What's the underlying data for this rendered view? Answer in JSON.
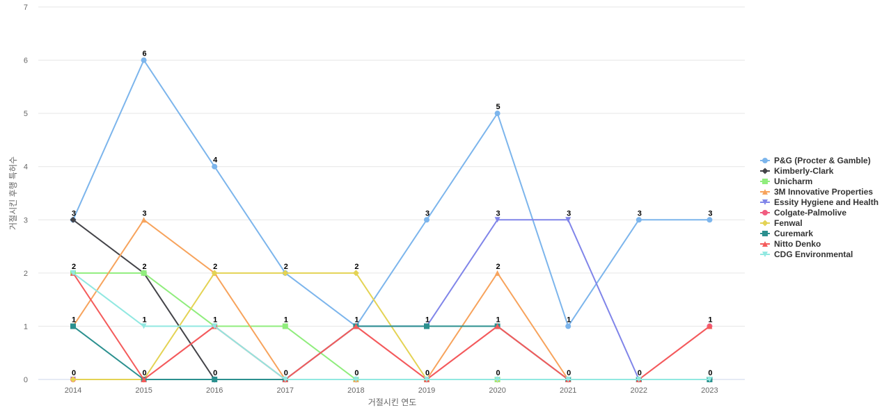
{
  "chart_data": {
    "type": "line",
    "title": "",
    "xlabel": "거절시킨 연도",
    "ylabel": "거절시킨 후행 특허수",
    "categories": [
      "2014",
      "2015",
      "2016",
      "2017",
      "2018",
      "2019",
      "2020",
      "2021",
      "2022",
      "2023"
    ],
    "ylim": [
      0,
      7
    ],
    "yticks": [
      0,
      1,
      2,
      3,
      4,
      5,
      6,
      7
    ],
    "grid": true,
    "legend_position": "right",
    "data_labels": [
      {
        "x": "2014",
        "values": [
          "3",
          "2",
          "1",
          "0"
        ]
      },
      {
        "x": "2015",
        "values": [
          "6",
          "3",
          "2",
          "1",
          "0"
        ]
      },
      {
        "x": "2016",
        "values": [
          "4",
          "2",
          "1",
          "0"
        ]
      },
      {
        "x": "2017",
        "values": [
          "2",
          "1",
          "0"
        ]
      },
      {
        "x": "2018",
        "values": [
          "2",
          "1",
          "0"
        ]
      },
      {
        "x": "2019",
        "values": [
          "3",
          "1",
          "0"
        ]
      },
      {
        "x": "2020",
        "values": [
          "5",
          "3",
          "2",
          "1",
          "0"
        ]
      },
      {
        "x": "2021",
        "values": [
          "3",
          "1",
          "0"
        ]
      },
      {
        "x": "2022",
        "values": [
          "3",
          "0"
        ]
      },
      {
        "x": "2023",
        "values": [
          "3",
          "1",
          "0"
        ]
      }
    ],
    "series": [
      {
        "name": "P&G (Procter & Gamble)",
        "color": "#7cb5ec",
        "marker": "circle",
        "values": [
          3,
          6,
          4,
          2,
          1,
          3,
          5,
          1,
          3,
          3
        ]
      },
      {
        "name": "Kimberly-Clark",
        "color": "#434348",
        "marker": "diamond",
        "values": [
          3,
          2,
          0,
          0,
          0,
          0,
          0,
          0,
          0,
          0
        ]
      },
      {
        "name": "Unicharm",
        "color": "#90ed7d",
        "marker": "square",
        "values": [
          2,
          2,
          1,
          1,
          0,
          0,
          0,
          0,
          0,
          0
        ]
      },
      {
        "name": "3M Innovative Properties",
        "color": "#f7a35c",
        "marker": "triangle",
        "values": [
          1,
          3,
          2,
          0,
          0,
          0,
          2,
          0,
          0,
          0
        ]
      },
      {
        "name": "Essity Hygiene and Health",
        "color": "#8085e9",
        "marker": "triangle-down",
        "values": [
          0,
          0,
          0,
          0,
          1,
          1,
          3,
          3,
          0,
          0
        ]
      },
      {
        "name": "Colgate-Palmolive",
        "color": "#f15c80",
        "marker": "circle",
        "values": [
          0,
          0,
          1,
          0,
          1,
          0,
          1,
          0,
          0,
          1
        ]
      },
      {
        "name": "Fenwal",
        "color": "#e4d354",
        "marker": "diamond",
        "values": [
          0,
          0,
          2,
          2,
          2,
          0,
          0,
          0,
          0,
          0
        ]
      },
      {
        "name": "Curemark",
        "color": "#2b908f",
        "marker": "square",
        "values": [
          1,
          0,
          0,
          0,
          1,
          1,
          1,
          0,
          0,
          0
        ]
      },
      {
        "name": "Nitto Denko",
        "color": "#f45b5b",
        "marker": "triangle",
        "values": [
          2,
          0,
          1,
          0,
          1,
          0,
          1,
          0,
          0,
          1
        ]
      },
      {
        "name": "CDG Environmental",
        "color": "#91e8e1",
        "marker": "triangle-down",
        "values": [
          2,
          1,
          1,
          0,
          0,
          0,
          0,
          0,
          0,
          0
        ]
      }
    ]
  }
}
